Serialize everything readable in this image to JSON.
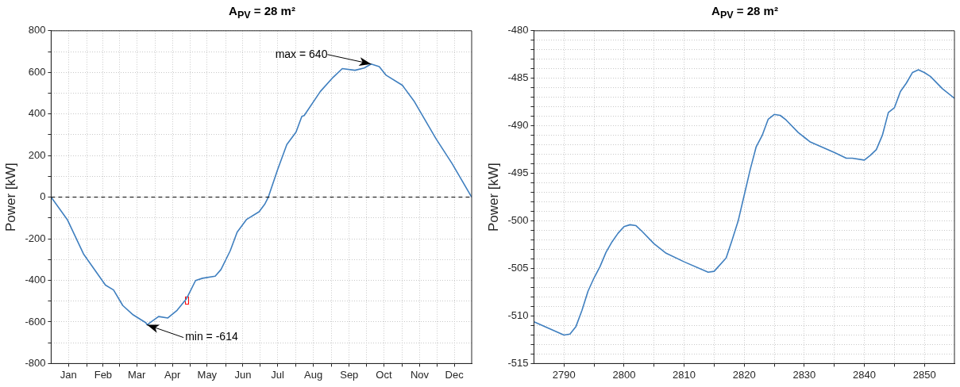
{
  "chart_data": [
    {
      "type": "line",
      "title": "A$_{PV}$ = 28 m²",
      "ylabel": "Power [kW]",
      "x": [
        "--01-01",
        "--01-15",
        "--01-29",
        "--02-17",
        "--02-24",
        "--03-04",
        "--03-13",
        "--03-24",
        "--03-25",
        "--04-04",
        "--04-12",
        "--04-20",
        "--04-28",
        "--05-06",
        "--05-12",
        "--05-23",
        "--05-28",
        "--06-05",
        "--06-11",
        "--06-19",
        "--06-30",
        "--07-05",
        "--07-08",
        "--07-16",
        "--07-24",
        "--08-01",
        "--08-06",
        "--08-08",
        "--08-22",
        "--09-02",
        "--09-10",
        "--09-21",
        "--09-29",
        "--10-05",
        "--10-12",
        "--10-18",
        "--11-01",
        "--11-11",
        "--11-30",
        "--12-14",
        "--12-31"
      ],
      "series": [
        {
          "color": "#3f7fbf",
          "values": [
            0,
            -108,
            -273,
            -423,
            -446,
            -521,
            -566,
            -604,
            -614,
            -574,
            -581,
            -544,
            -490,
            -401,
            -390,
            -380,
            -348,
            -258,
            -168,
            -108,
            -70,
            -33,
            0,
            132,
            253,
            313,
            388,
            392,
            508,
            576,
            618,
            610,
            621,
            640,
            628,
            586,
            538,
            463,
            282,
            162,
            0
          ]
        }
      ],
      "xlim": [
        "--01-01",
        "--12-31"
      ],
      "xticks": [
        {
          "value": "--01-16",
          "label": "Jan"
        },
        {
          "value": "--02-01",
          "label": null
        },
        {
          "value": "--02-15",
          "label": "Feb"
        },
        {
          "value": "--03-01",
          "label": null
        },
        {
          "value": "--03-16",
          "label": "Mar"
        },
        {
          "value": "--04-01",
          "label": null
        },
        {
          "value": "--04-16",
          "label": "Apr"
        },
        {
          "value": "--05-01",
          "label": null
        },
        {
          "value": "--05-16",
          "label": "May"
        },
        {
          "value": "--06-01",
          "label": null
        },
        {
          "value": "--06-16",
          "label": "Jun"
        },
        {
          "value": "--07-01",
          "label": null
        },
        {
          "value": "--07-16",
          "label": "Jul"
        },
        {
          "value": "--08-01",
          "label": null
        },
        {
          "value": "--08-16",
          "label": "Aug"
        },
        {
          "value": "--09-01",
          "label": null
        },
        {
          "value": "--09-16",
          "label": "Sep"
        },
        {
          "value": "--10-01",
          "label": null
        },
        {
          "value": "--10-16",
          "label": "Oct"
        },
        {
          "value": "--11-01",
          "label": null
        },
        {
          "value": "--11-16",
          "label": "Nov"
        },
        {
          "value": "--12-01",
          "label": null
        },
        {
          "value": "--12-16",
          "label": "Dec"
        }
      ],
      "ylim": [
        -800,
        800
      ],
      "yticks": [
        -800,
        {
          "value": -700,
          "label": null
        },
        -600,
        {
          "value": -500,
          "label": null
        },
        -400,
        {
          "value": -300,
          "label": null
        },
        -200,
        {
          "value": -100,
          "label": null
        },
        0,
        {
          "value": 100,
          "label": null
        },
        200,
        {
          "value": 300,
          "label": null
        },
        400,
        {
          "value": 500,
          "label": null
        },
        600,
        {
          "value": 700,
          "label": null
        },
        800
      ],
      "grid": true,
      "ref_lines": [
        {
          "axis": "y",
          "value": 0,
          "color": "#000000",
          "line_style": "dashed"
        }
      ],
      "annotations": [
        {
          "text": "max = 640",
          "x": "--10-05",
          "y": 640
        },
        {
          "text": "min = -614",
          "x": "--03-25",
          "y": -614
        }
      ]
    },
    {
      "type": "line",
      "title": "A$_{PV}$ = 28 m²",
      "ylabel": "Power [kW]",
      "x": [
        2785,
        2790,
        2791,
        2792,
        2793,
        2794,
        2795,
        2796,
        2797,
        2798,
        2799,
        2800,
        2801,
        2802,
        2803,
        2805,
        2807,
        2810,
        2814,
        2815,
        2817,
        2818,
        2819,
        2820,
        2821,
        2822,
        2823,
        2824,
        2825,
        2826,
        2827,
        2829,
        2831,
        2835,
        2837,
        2838,
        2840,
        2841,
        2842,
        2843,
        2844,
        2845,
        2846,
        2847,
        2848,
        2849,
        2850,
        2851,
        2853,
        2855
      ],
      "series": [
        {
          "color": "#3f7fbf",
          "values": [
            -510.6,
            -512.0,
            -511.9,
            -511.1,
            -509.4,
            -507.4,
            -506.0,
            -504.8,
            -503.3,
            -502.2,
            -501.3,
            -500.6,
            -500.4,
            -500.5,
            -501.1,
            -502.4,
            -503.4,
            -504.3,
            -505.4,
            -505.3,
            -503.9,
            -502.0,
            -500.0,
            -497.3,
            -494.6,
            -492.2,
            -491.0,
            -489.3,
            -488.8,
            -488.9,
            -489.4,
            -490.7,
            -491.7,
            -492.8,
            -493.4,
            -493.4,
            -493.6,
            -493.1,
            -492.5,
            -491.0,
            -488.6,
            -488.1,
            -486.4,
            -485.5,
            -484.4,
            -484.1,
            -484.4,
            -484.8,
            -486.1,
            -487.1
          ]
        }
      ],
      "xlim": [
        2785,
        2855
      ],
      "xticks": [
        2790,
        {
          "value": 2795,
          "label": null
        },
        2800,
        {
          "value": 2805,
          "label": null
        },
        2810,
        {
          "value": 2815,
          "label": null
        },
        2820,
        {
          "value": 2825,
          "label": null
        },
        2830,
        {
          "value": 2835,
          "label": null
        },
        2840,
        {
          "value": 2845,
          "label": null
        },
        2850
      ],
      "ylim": [
        -515,
        -480
      ],
      "yticks": [
        -515,
        {
          "value": -514,
          "label": null
        },
        {
          "value": -513,
          "label": null
        },
        {
          "value": -512,
          "label": null
        },
        {
          "value": -511,
          "label": null
        },
        -510,
        {
          "value": -509,
          "label": null
        },
        {
          "value": -508,
          "label": null
        },
        {
          "value": -507,
          "label": null
        },
        {
          "value": -506,
          "label": null
        },
        -505,
        {
          "value": -504,
          "label": null
        },
        {
          "value": -503,
          "label": null
        },
        {
          "value": -502,
          "label": null
        },
        {
          "value": -501,
          "label": null
        },
        -500,
        {
          "value": -499,
          "label": null
        },
        {
          "value": -498,
          "label": null
        },
        {
          "value": -497,
          "label": null
        },
        {
          "value": -496,
          "label": null
        },
        -495,
        {
          "value": -494,
          "label": null
        },
        {
          "value": -493,
          "label": null
        },
        {
          "value": -492,
          "label": null
        },
        {
          "value": -491,
          "label": null
        },
        -490,
        {
          "value": -489,
          "label": null
        },
        {
          "value": -488,
          "label": null
        },
        {
          "value": -487,
          "label": null
        },
        {
          "value": -486,
          "label": null
        },
        -485,
        {
          "value": -484,
          "label": null
        },
        {
          "value": -483,
          "label": null
        },
        {
          "value": -482,
          "label": null
        },
        {
          "value": -481,
          "label": null
        },
        -480
      ],
      "grid": true
    }
  ]
}
